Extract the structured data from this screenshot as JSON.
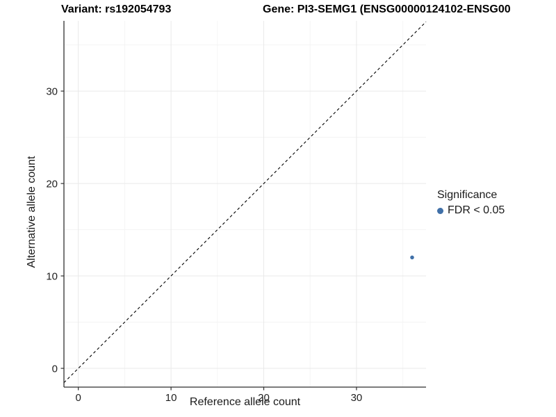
{
  "chart_data": {
    "type": "scatter",
    "title_left": "Variant: rs192054793",
    "title_right": "Gene: PI3-SEMG1 (ENSG00000124102-ENSG00",
    "xlabel": "Reference allele count",
    "ylabel": "Alternative allele count",
    "xlim": [
      -1.55,
      37.5
    ],
    "ylim": [
      -2.03,
      37.6
    ],
    "x_ticks": [
      0,
      10,
      20,
      30
    ],
    "y_ticks": [
      0,
      10,
      20,
      30
    ],
    "x_minor_ticks": [
      5,
      15,
      25,
      35
    ],
    "y_minor_ticks": [
      5,
      15,
      25,
      35
    ],
    "grid": true,
    "identity_line": {
      "equation": "y = x",
      "style": "dashed",
      "color": "#000000"
    },
    "points": [
      {
        "x": 36,
        "y": 12,
        "series": "FDR < 0.05"
      }
    ],
    "point_color": "#4070A8",
    "point_radius": 2.8,
    "legend": {
      "title": "Significance",
      "position": "right",
      "items": [
        {
          "label": "FDR < 0.05",
          "color": "#4070A8"
        }
      ]
    }
  },
  "colors": {
    "axis": "#2f2f2f",
    "tick_text": "#1f1f1f",
    "grid_major": "#e9e9e9",
    "grid_minor": "#f4f4f4",
    "background": "#ffffff"
  }
}
